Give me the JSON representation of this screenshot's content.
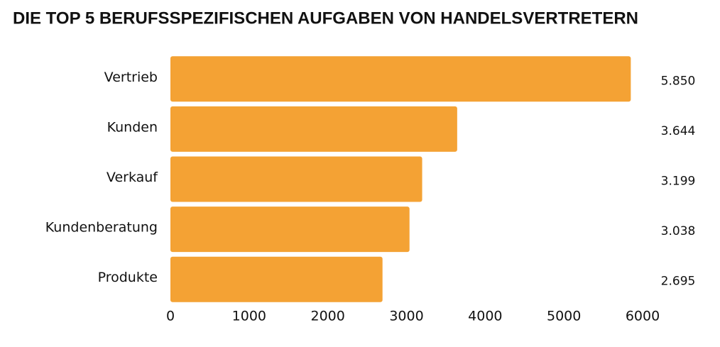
{
  "chart_data": {
    "type": "bar",
    "orientation": "horizontal",
    "title": "DIE TOP 5 BERUFSSPEZIFISCHEN AUFGABEN VON HANDELSVERTRETERN",
    "categories": [
      "Vertrieb",
      "Kunden",
      "Verkauf",
      "Kundenberatung",
      "Produkte"
    ],
    "values": [
      5850,
      3644,
      3199,
      3038,
      2695
    ],
    "value_labels": [
      "5.850",
      "3.644",
      "3.199",
      "3.038",
      "2.695"
    ],
    "color": "#f4a234",
    "xlim": [
      0,
      6000
    ],
    "xticks": [
      0,
      1000,
      2000,
      3000,
      4000,
      5000,
      6000
    ],
    "grid": false
  }
}
